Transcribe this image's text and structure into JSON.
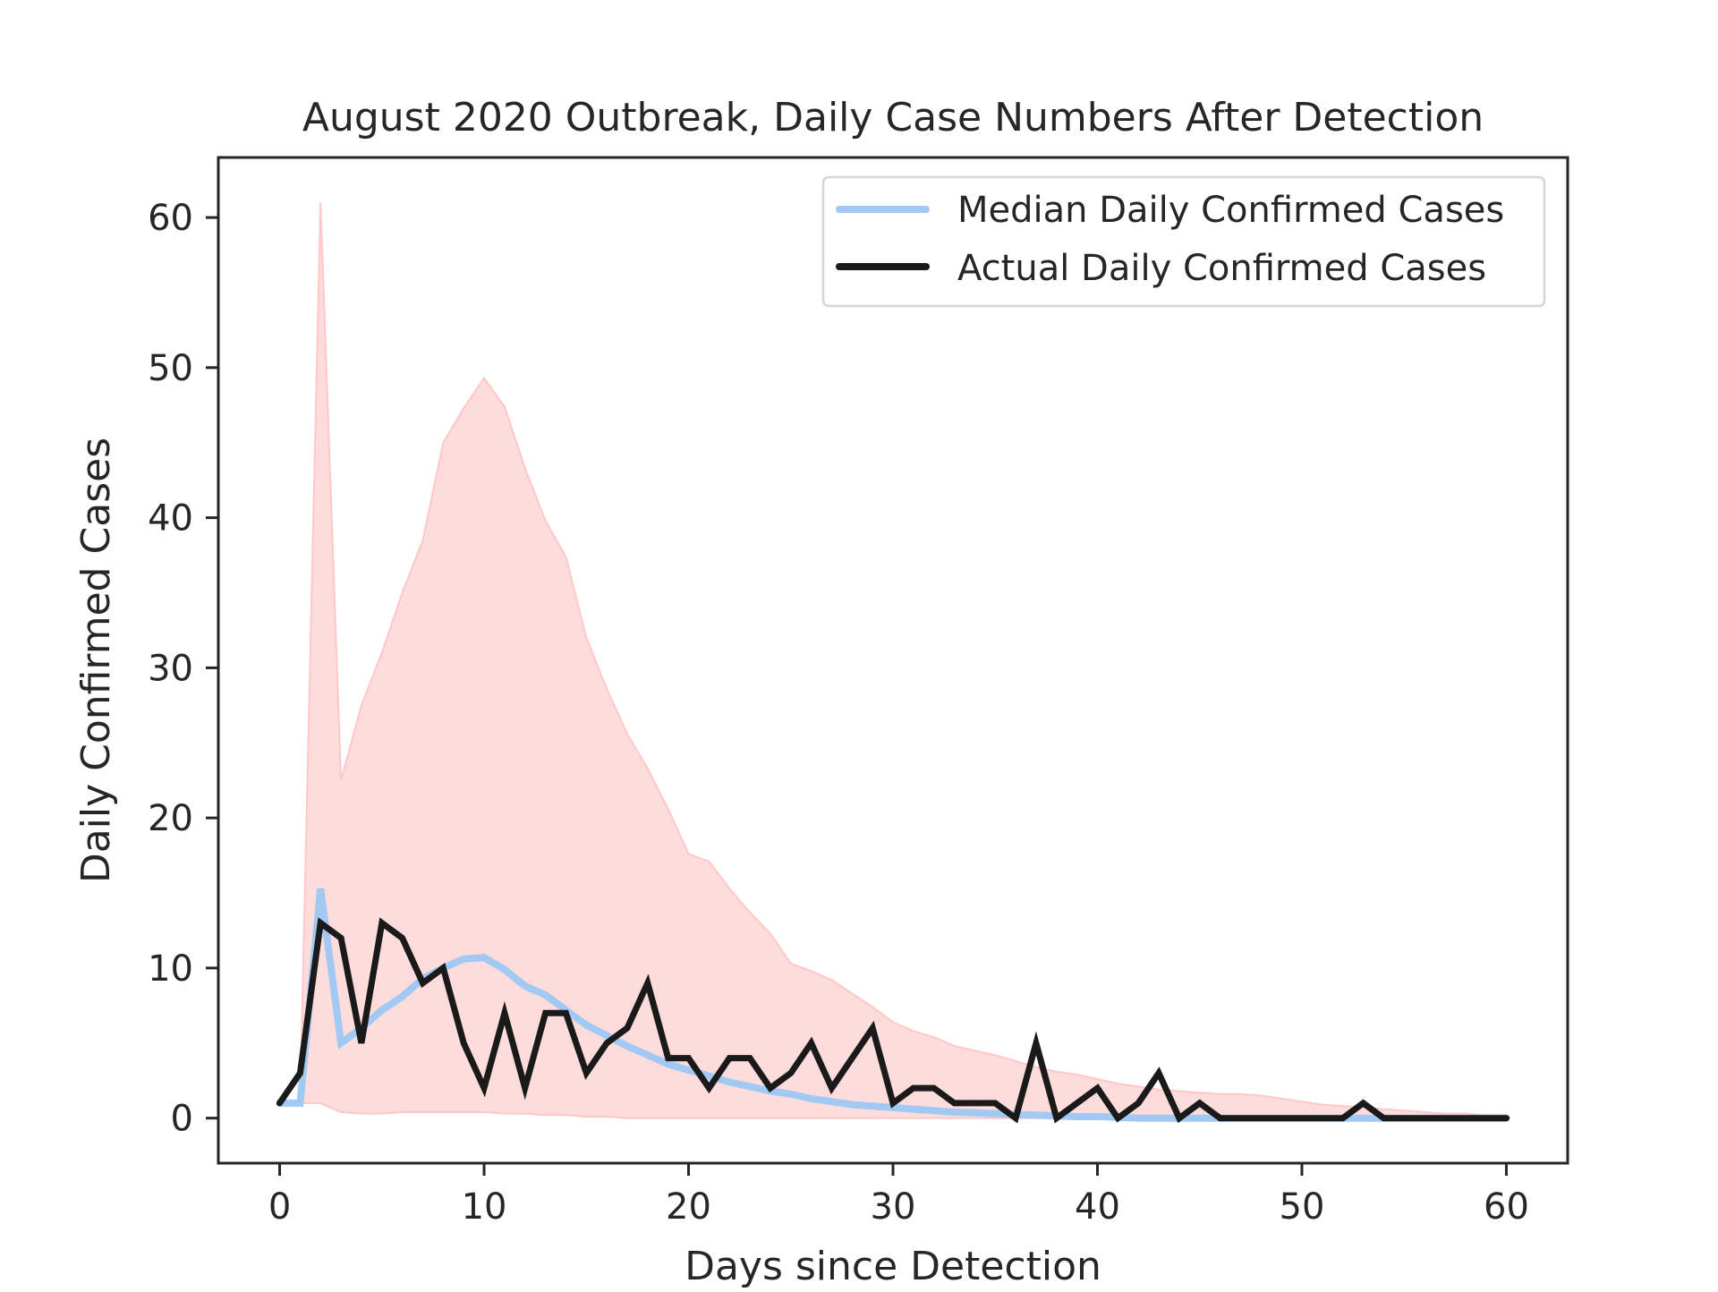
{
  "chart_data": {
    "type": "line",
    "title": "August 2020 Outbreak, Daily Case Numbers After Detection",
    "xlabel": "Days since Detection",
    "ylabel": "Daily Confirmed Cases",
    "xlim": [
      -3,
      63
    ],
    "ylim": [
      -3,
      64
    ],
    "xticks": [
      0,
      10,
      20,
      30,
      40,
      50,
      60
    ],
    "yticks": [
      0,
      10,
      20,
      30,
      40,
      50,
      60
    ],
    "grid": false,
    "legend_position": "top-right",
    "x": [
      0,
      1,
      2,
      3,
      4,
      5,
      6,
      7,
      8,
      9,
      10,
      11,
      12,
      13,
      14,
      15,
      16,
      17,
      18,
      19,
      20,
      21,
      22,
      23,
      24,
      25,
      26,
      27,
      28,
      29,
      30,
      31,
      32,
      33,
      34,
      35,
      36,
      37,
      38,
      39,
      40,
      41,
      42,
      43,
      44,
      45,
      46,
      47,
      48,
      49,
      50,
      51,
      52,
      53,
      54,
      55,
      56,
      57,
      58,
      59,
      60
    ],
    "band": {
      "color": "#ffdcdc",
      "edge_color": "#ffc8c8",
      "lower": [
        1,
        1,
        1,
        0.4,
        0.3,
        0.3,
        0.4,
        0.4,
        0.4,
        0.4,
        0.4,
        0.3,
        0.3,
        0.2,
        0.2,
        0.1,
        0.1,
        0,
        0,
        0,
        0,
        0,
        0,
        0,
        0,
        0,
        0,
        0,
        0,
        0,
        0,
        0,
        0,
        0,
        0,
        0,
        0,
        0,
        0,
        0,
        0,
        0,
        0,
        0,
        0,
        0,
        0,
        0,
        0,
        0,
        0,
        0,
        0,
        0,
        0,
        0,
        0,
        0,
        0,
        0,
        0
      ],
      "upper": [
        1,
        1,
        61,
        22.5,
        27.5,
        31,
        35,
        38.5,
        45,
        47.3,
        49.3,
        47.4,
        43.3,
        39.8,
        37.4,
        32,
        28.6,
        25.6,
        23.3,
        20.6,
        17.6,
        17.1,
        15.3,
        13.7,
        12.3,
        10.3,
        9.8,
        9.2,
        8.3,
        7.4,
        6.4,
        5.8,
        5.4,
        4.8,
        4.5,
        4.2,
        3.8,
        3.4,
        3.1,
        2.9,
        2.6,
        2.3,
        2.1,
        1.9,
        1.8,
        1.7,
        1.6,
        1.6,
        1.5,
        1.3,
        1.1,
        0.9,
        0.8,
        0.7,
        0.6,
        0.5,
        0.4,
        0.3,
        0.3,
        0.2,
        0.2
      ]
    },
    "series": [
      {
        "name": "Median Daily Confirmed Cases",
        "color": "#a1c9f4",
        "values": [
          1,
          1,
          15.3,
          5,
          6,
          7.2,
          8.1,
          9.3,
          10,
          10.6,
          10.7,
          9.9,
          8.8,
          8.2,
          7.2,
          6.2,
          5.5,
          4.8,
          4.2,
          3.6,
          3.2,
          2.8,
          2.4,
          2.1,
          1.8,
          1.6,
          1.3,
          1.1,
          0.9,
          0.8,
          0.7,
          0.6,
          0.5,
          0.4,
          0.35,
          0.3,
          0.25,
          0.2,
          0.15,
          0.1,
          0.1,
          0.05,
          0,
          0,
          0,
          0,
          0,
          0,
          0,
          0,
          0,
          0,
          0,
          0,
          0,
          0,
          0,
          0,
          0,
          0,
          0
        ]
      },
      {
        "name": "Actual Daily Confirmed Cases",
        "color": "#1a1a1a",
        "values": [
          1,
          3,
          13,
          12,
          5,
          13,
          12,
          9,
          10,
          5,
          2,
          7,
          2,
          7,
          7,
          3,
          5,
          6,
          9,
          4,
          4,
          2,
          4,
          4,
          2,
          3,
          5,
          2,
          4,
          6,
          1,
          2,
          2,
          1,
          1,
          1,
          0,
          5,
          0,
          1,
          2,
          0,
          1,
          3,
          0,
          1,
          0,
          0,
          0,
          0,
          0,
          0,
          0,
          1,
          0,
          0,
          0,
          0,
          0,
          0,
          0
        ]
      }
    ]
  }
}
